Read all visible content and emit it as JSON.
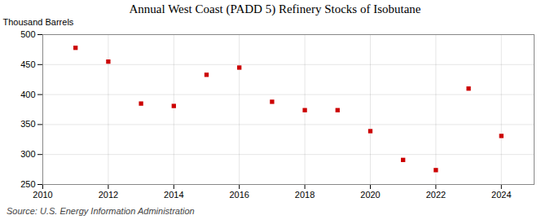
{
  "chart_data": {
    "type": "scatter",
    "title": "Annual West Coast (PADD 5) Refinery Stocks of Isobutane",
    "ylabel": "Thousand Barrels",
    "source": "Source: U.S. Energy Information Administration",
    "x": [
      2011,
      2012,
      2013,
      2014,
      2015,
      2016,
      2017,
      2018,
      2019,
      2020,
      2021,
      2022,
      2023,
      2024
    ],
    "values": [
      478,
      455,
      385,
      381,
      433,
      445,
      388,
      374,
      374,
      339,
      291,
      274,
      410,
      331
    ],
    "color": "#cc0000",
    "marker": "square",
    "xlim": [
      2010,
      2025
    ],
    "xticks": [
      2010,
      2012,
      2014,
      2016,
      2018,
      2020,
      2022,
      2024
    ],
    "ylim": [
      250,
      500
    ],
    "yticks": [
      250,
      300,
      350,
      400,
      450,
      500
    ],
    "grid": true
  }
}
